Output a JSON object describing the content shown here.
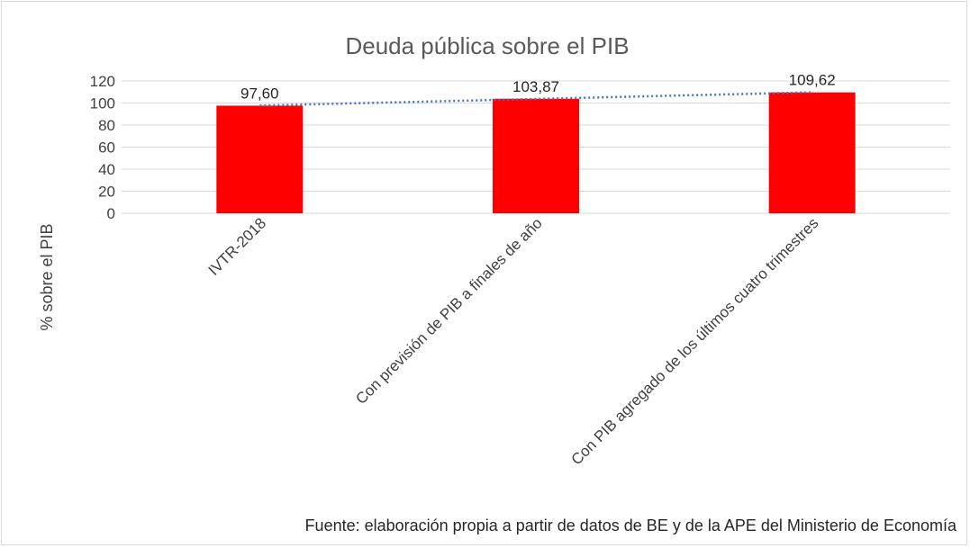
{
  "chart_data": {
    "type": "bar",
    "title": "Deuda pública sobre el PIB",
    "ylabel": "% sobre el PIB",
    "xlabel": "",
    "categories": [
      "IVTR-2018",
      "Con previsión de PIB a finales de año",
      "Con PIB agregado de los últimos cuatro trimestres"
    ],
    "values": [
      97.6,
      103.87,
      109.62
    ],
    "data_labels": [
      "97,60",
      "103,87",
      "109,62"
    ],
    "ylim": [
      0,
      120
    ],
    "yticks": [
      "0",
      "20",
      "40",
      "60",
      "80",
      "100",
      "120"
    ],
    "grid": true,
    "trendline": "linear",
    "bar_color": "#ff0000",
    "trendline_color": "#4472c4",
    "source": "Fuente: elaboración propia a partir de datos de BE y de la APE del Ministerio de Economía"
  }
}
